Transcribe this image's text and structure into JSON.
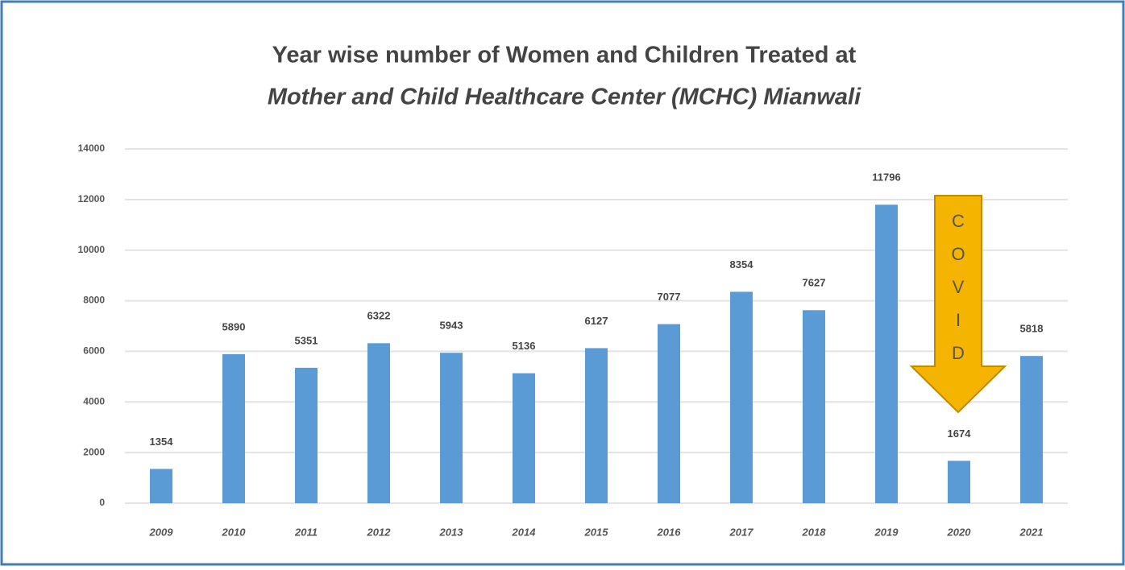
{
  "chart_data": {
    "type": "bar",
    "title": [
      "Year wise number of Women and Children Treated at",
      "Mother and Child Healthcare Center (MCHC) Mianwali"
    ],
    "categories": [
      "2009",
      "2010",
      "2011",
      "2012",
      "2013",
      "2014",
      "2015",
      "2016",
      "2017",
      "2018",
      "2019",
      "2020",
      "2021"
    ],
    "values": [
      1354,
      5890,
      5351,
      6322,
      5943,
      5136,
      6127,
      7077,
      8354,
      7627,
      11796,
      1674,
      5818
    ],
    "color": "#5b9bd5",
    "ylim": [
      0,
      14000
    ],
    "yticks": [
      0,
      2000,
      4000,
      6000,
      8000,
      10000,
      12000,
      14000
    ],
    "grid": true,
    "annotations": [
      {
        "text": "COVID",
        "color": "#f5b400"
      }
    ]
  }
}
